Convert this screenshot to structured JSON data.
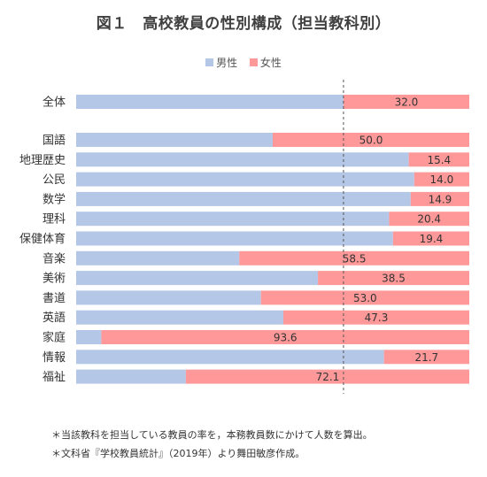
{
  "title": "図１　高校教員の性別構成（担当教科別）",
  "chart_data": {
    "type": "bar",
    "orientation": "horizontal",
    "stacked": "100%",
    "categories": [
      "全体",
      "国語",
      "地理歴史",
      "公民",
      "数学",
      "理科",
      "保健体育",
      "音楽",
      "美術",
      "書道",
      "英語",
      "家庭",
      "情報",
      "福祉"
    ],
    "series": [
      {
        "name": "男性",
        "color": "#b4c7e7",
        "values": [
          68.0,
          50.0,
          84.6,
          86.0,
          85.1,
          79.6,
          80.6,
          41.5,
          61.5,
          47.0,
          52.7,
          6.4,
          78.3,
          27.9
        ]
      },
      {
        "name": "女性",
        "color": "#ff9999",
        "values": [
          32.0,
          50.0,
          15.4,
          14.0,
          14.9,
          20.4,
          19.4,
          58.5,
          38.5,
          53.0,
          47.3,
          93.6,
          21.7,
          72.1
        ]
      }
    ],
    "data_labels": [
      "32.0",
      "50.0",
      "15.4",
      "14.0",
      "14.9",
      "20.4",
      "19.4",
      "58.5",
      "38.5",
      "53.0",
      "47.3",
      "93.6",
      "21.7",
      "72.1"
    ],
    "reference_line": 68.0,
    "xlim": [
      0,
      100
    ],
    "legend_position": "top"
  },
  "notes": [
    "＊当該教科を担当している教員の率を，本務教員数にかけて人数を算出。",
    "＊文科省『学校教員統計』（2019年）より舞田敏彦作成。"
  ]
}
